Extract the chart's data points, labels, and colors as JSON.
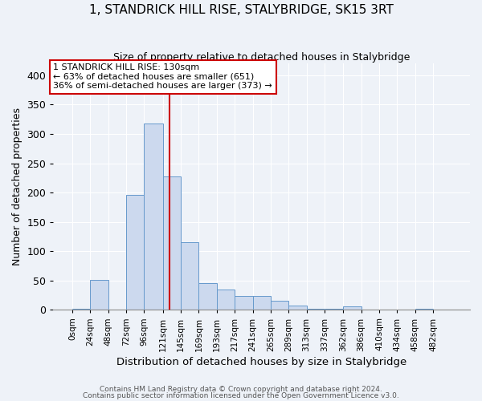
{
  "title": "1, STANDRICK HILL RISE, STALYBRIDGE, SK15 3RT",
  "subtitle": "Size of property relative to detached houses in Stalybridge",
  "xlabel": "Distribution of detached houses by size in Stalybridge",
  "ylabel": "Number of detached properties",
  "bin_labels": [
    "0sqm",
    "24sqm",
    "48sqm",
    "72sqm",
    "96sqm",
    "121sqm",
    "145sqm",
    "169sqm",
    "193sqm",
    "217sqm",
    "241sqm",
    "265sqm",
    "289sqm",
    "313sqm",
    "337sqm",
    "362sqm",
    "386sqm",
    "410sqm",
    "434sqm",
    "458sqm",
    "482sqm"
  ],
  "bar_values": [
    2,
    51,
    0,
    196,
    318,
    228,
    116,
    45,
    35,
    24,
    24,
    15,
    7,
    2,
    2,
    6,
    1,
    0,
    0,
    2,
    0
  ],
  "bar_color": "#ccd9ee",
  "bar_edge_color": "#6699cc",
  "vline_x": 130,
  "bin_edges": [
    0,
    24,
    48,
    72,
    96,
    121,
    145,
    169,
    193,
    217,
    241,
    265,
    289,
    313,
    337,
    362,
    386,
    410,
    434,
    458,
    482,
    506
  ],
  "ylim": [
    0,
    420
  ],
  "yticks": [
    0,
    50,
    100,
    150,
    200,
    250,
    300,
    350,
    400
  ],
  "annotation_title": "1 STANDRICK HILL RISE: 130sqm",
  "annotation_line1": "← 63% of detached houses are smaller (651)",
  "annotation_line2": "36% of semi-detached houses are larger (373) →",
  "annotation_box_color": "#ffffff",
  "annotation_box_edge_color": "#cc0000",
  "vline_color": "#cc0000",
  "footnote1": "Contains HM Land Registry data © Crown copyright and database right 2024.",
  "footnote2": "Contains public sector information licensed under the Open Government Licence v3.0.",
  "bg_color": "#eef2f8",
  "plot_bg_color": "#eef2f8",
  "grid_color": "#ffffff"
}
